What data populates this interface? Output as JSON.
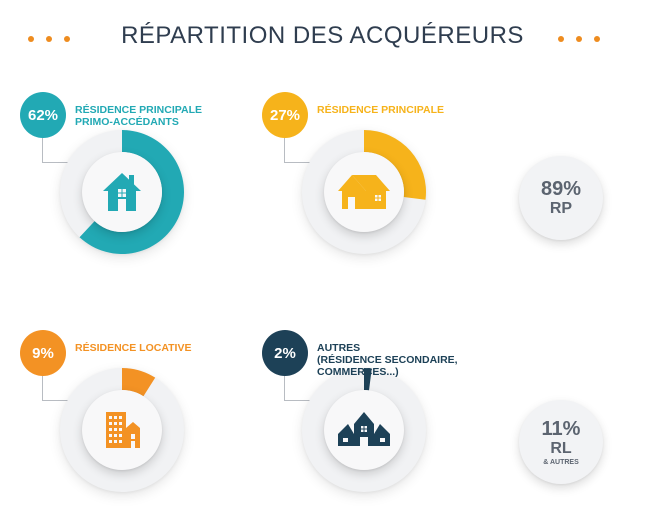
{
  "title": "RÉPARTITION DES ACQUÉREURS",
  "colors": {
    "teal": "#22a9b4",
    "yellow": "#f6b31b",
    "orange": "#f39224",
    "navy": "#1d4157",
    "dots": "#ee8c1f",
    "text_dark": "#2f3d4f",
    "text_gray": "#5c6470"
  },
  "segments": [
    {
      "pct": "62%",
      "label_lines": [
        "RÉSIDENCE PRINCIPALE",
        "PRIMO-ACCÉDANTS"
      ],
      "icon": "house-icon",
      "color": "#22a9b4"
    },
    {
      "pct": "27%",
      "label_lines": [
        "RÉSIDENCE PRINCIPALE"
      ],
      "icon": "house-wide-icon",
      "color": "#f6b31b"
    },
    {
      "pct": "9%",
      "label_lines": [
        "RÉSIDENCE LOCATIVE"
      ],
      "icon": "buildings-icon",
      "color": "#f39224"
    },
    {
      "pct": "2%",
      "label_lines": [
        "AUTRES",
        "(RÉSIDENCE SECONDAIRE,",
        "COMMERCES...)"
      ],
      "icon": "shops-icon",
      "color": "#1d4157"
    }
  ],
  "totals": [
    {
      "pct": "89%",
      "code": "RP",
      "sub": ""
    },
    {
      "pct": "11%",
      "code": "RL",
      "sub": "& AUTRES"
    }
  ],
  "chart_data": {
    "type": "pie",
    "title": "RÉPARTITION DES ACQUÉREURS",
    "categories": [
      "RÉSIDENCE PRINCIPALE PRIMO-ACCÉDANTS",
      "RÉSIDENCE PRINCIPALE",
      "RÉSIDENCE LOCATIVE",
      "AUTRES (RÉSIDENCE SECONDAIRE, COMMERCES...)"
    ],
    "values": [
      62,
      27,
      9,
      2
    ],
    "totals": [
      {
        "label": "RP",
        "value": 89
      },
      {
        "label": "RL & AUTRES",
        "value": 11
      }
    ]
  }
}
